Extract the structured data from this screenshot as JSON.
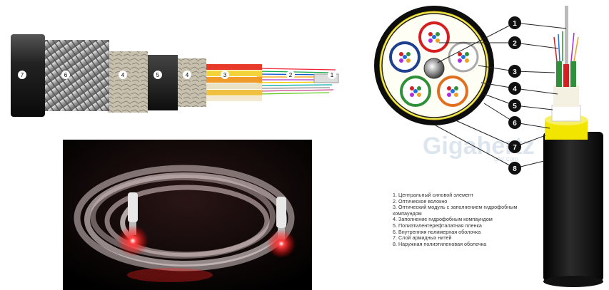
{
  "panel_top_left": {
    "labels": [
      "7",
      "6",
      "4",
      "5",
      "4",
      "3",
      "2",
      "1"
    ]
  },
  "panel_right": {
    "callout_numbers": [
      "1",
      "2",
      "3",
      "4",
      "5",
      "6",
      "7",
      "8"
    ],
    "watermark": "Gigahertz",
    "watermark_sub": "ghz.com",
    "legend": [
      "1. Центральный силовой элемент",
      "2. Оптическое волокно",
      "3. Оптический модуль с заполнением гидрофобным",
      "компаундом",
      "4. Заполнение гидрофобным компаундом",
      "5. Полиэтилентерефталатная пленка",
      "6. Внутренняя полимерная оболочка",
      "7. Слой армидных нитей",
      "8. Наружная полиэтиленовая оболочка"
    ]
  },
  "colors": {
    "jacket_black": "#111111",
    "yarn_yellow": "#f2e600",
    "module_red": "#d42020",
    "module_green": "#2f8f3a",
    "module_blue": "#1f3f8f",
    "glow_red": "#ff2020"
  }
}
